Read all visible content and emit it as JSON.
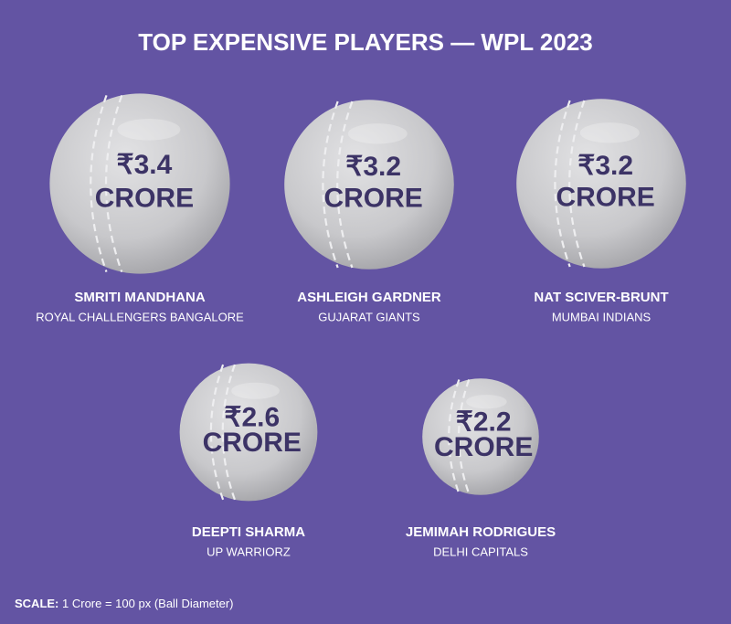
{
  "chart_data": {
    "type": "bubble",
    "title": "TOP EXPENSIVE PLAYERS — WPL 2023",
    "categories": [
      "SMRITI MANDHANA",
      "ASHLEIGH GARDNER",
      "NAT SCIVER-BRUNT",
      "DEEPTI SHARMA",
      "JEMIMAH RODRIGUES"
    ],
    "teams": [
      "ROYAL CHALLENGERS BANGALORE",
      "GUJARAT GIANTS",
      "MUMBAI INDIANS",
      "UP WARRIORZ",
      "DELHI CAPITALS"
    ],
    "values": [
      3.4,
      3.2,
      3.2,
      2.6,
      2.2
    ],
    "value_labels": [
      "₹3.4",
      "₹3.2",
      "₹3.2",
      "₹2.6",
      "₹2.2"
    ],
    "unit": "CRORE",
    "color": "#c9c9cc",
    "scale_label": "SCALE:",
    "scale_text": "1 Crore = 100 px (Ball Diameter)"
  }
}
